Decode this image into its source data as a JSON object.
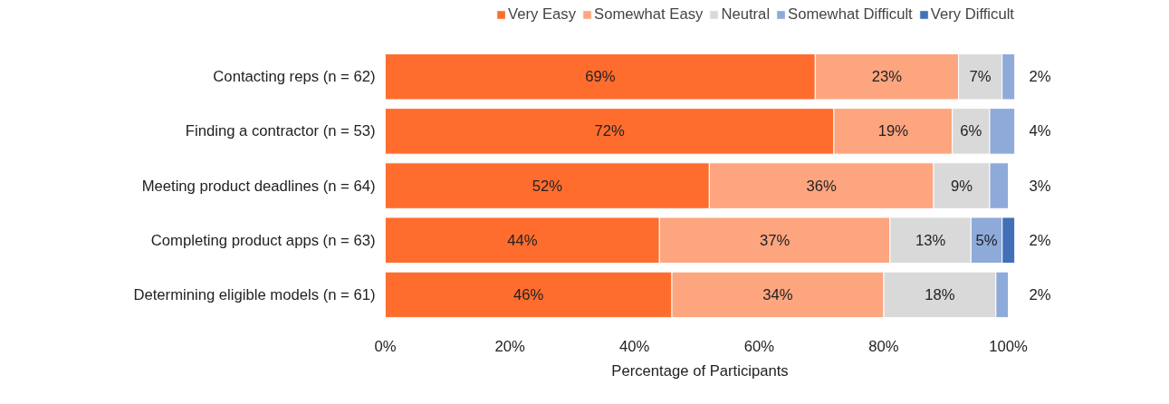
{
  "chart_data": {
    "type": "bar",
    "orientation": "horizontal",
    "stacked": true,
    "categories": [
      "Contacting reps (n = 62)",
      "Finding a contractor (n = 53)",
      "Meeting product deadlines (n = 64)",
      "Completing product apps (n = 63)",
      "Determining eligible models (n = 61)"
    ],
    "series": [
      {
        "name": "Very Easy",
        "color": "#ff6d2e",
        "values": [
          69,
          72,
          52,
          44,
          46
        ],
        "value_labels": [
          "69%",
          "72%",
          "52%",
          "44%",
          "46%"
        ]
      },
      {
        "name": "Somewhat Easy",
        "color": "#fda57f",
        "values": [
          23,
          19,
          36,
          37,
          34
        ],
        "value_labels": [
          "23%",
          "19%",
          "36%",
          "37%",
          "34%"
        ]
      },
      {
        "name": "Neutral",
        "color": "#d9d9d9",
        "values": [
          7,
          6,
          9,
          13,
          18
        ],
        "value_labels": [
          "7%",
          "6%",
          "9%",
          "13%",
          "18%"
        ]
      },
      {
        "name": "Somewhat Difficult",
        "color": "#8eaad9",
        "values": [
          2,
          4,
          3,
          5,
          2
        ],
        "value_labels": [
          "2%",
          "4%",
          "3%",
          "5%",
          "2%"
        ]
      },
      {
        "name": "Very Difficult",
        "color": "#4270b8",
        "values": [
          null,
          null,
          null,
          2,
          null
        ],
        "value_labels": [
          null,
          null,
          null,
          "2%",
          null
        ]
      }
    ],
    "xlim": [
      0,
      101
    ],
    "xticks": [
      {
        "value": 0,
        "label": "0%"
      },
      {
        "value": 20,
        "label": "20%"
      },
      {
        "value": 40,
        "label": "40%"
      },
      {
        "value": 60,
        "label": "60%"
      },
      {
        "value": 80,
        "label": "80%"
      },
      {
        "value": 100,
        "label": "100%"
      }
    ],
    "xlabel": "Percentage of Participants",
    "legend": "top",
    "grid": false
  }
}
